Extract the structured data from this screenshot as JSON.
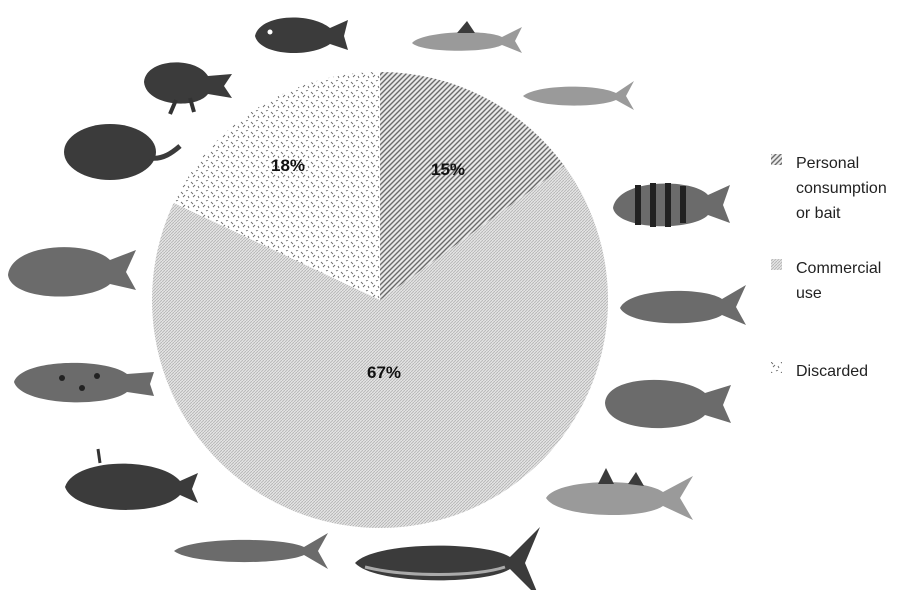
{
  "chart_data": {
    "type": "pie",
    "title": "",
    "slices": [
      {
        "label": "Personal consumption or bait",
        "value": 15,
        "value_label": "15%",
        "pattern": "diagonal-hatch"
      },
      {
        "label": "Commercial use",
        "value": 67,
        "value_label": "67%",
        "pattern": "fine-dots"
      },
      {
        "label": "Discarded",
        "value": 18,
        "value_label": "18%",
        "pattern": "zigzag-dots"
      }
    ],
    "legend": {
      "placement": "right",
      "items": [
        {
          "lines": [
            "Personal",
            "consumption",
            "or bait"
          ],
          "pattern": "diagonal-hatch"
        },
        {
          "lines": [
            "Commercial",
            "use"
          ],
          "pattern": "fine-dots"
        },
        {
          "lines": [
            "Discarded"
          ],
          "pattern": "zigzag-dots"
        }
      ]
    },
    "start_angle": "12 o'clock",
    "direction": "clockwise"
  },
  "decorations": {
    "fish_icons": [
      "triggerfish-icon",
      "goatfish-icon",
      "sardine-icon",
      "striped-perch-icon",
      "yellowtail-icon",
      "parrotfish-icon",
      "snook-icon",
      "tuna-icon",
      "mackerel-icon",
      "filefish-icon",
      "grouper-icon",
      "snapper-icon",
      "stingray-icon",
      "frogfish-icon"
    ]
  }
}
